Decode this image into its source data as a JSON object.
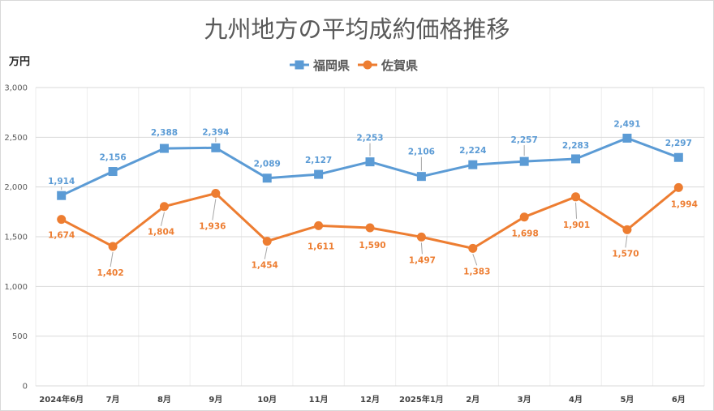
{
  "chart_data": {
    "type": "line",
    "title": "九州地方の平均成約価格推移",
    "ylabel": "万円",
    "categories": [
      "2024年6月",
      "7月",
      "8月",
      "9月",
      "10月",
      "11月",
      "12月",
      "2025年1月",
      "2月",
      "3月",
      "4月",
      "5月",
      "6月"
    ],
    "series": [
      {
        "name": "福岡県",
        "marker": "square",
        "color": "#5B9BD5",
        "values": [
          1914,
          2156,
          2388,
          2394,
          2089,
          2127,
          2253,
          2106,
          2224,
          2257,
          2283,
          2491,
          2297
        ]
      },
      {
        "name": "佐賀県",
        "marker": "circle",
        "color": "#ED7D31",
        "values": [
          1674,
          1402,
          1804,
          1936,
          1454,
          1611,
          1590,
          1497,
          1383,
          1698,
          1901,
          1570,
          1994
        ]
      }
    ],
    "ylim": [
      0,
      3000
    ],
    "yticks": [
      0,
      500,
      1000,
      1500,
      2000,
      2500,
      3000
    ],
    "ytick_labels": [
      "0",
      "500",
      "1,000",
      "1,500",
      "2,000",
      "2,500",
      "3,000"
    ],
    "grid": true,
    "legend": "top-center",
    "data_labels": true
  }
}
